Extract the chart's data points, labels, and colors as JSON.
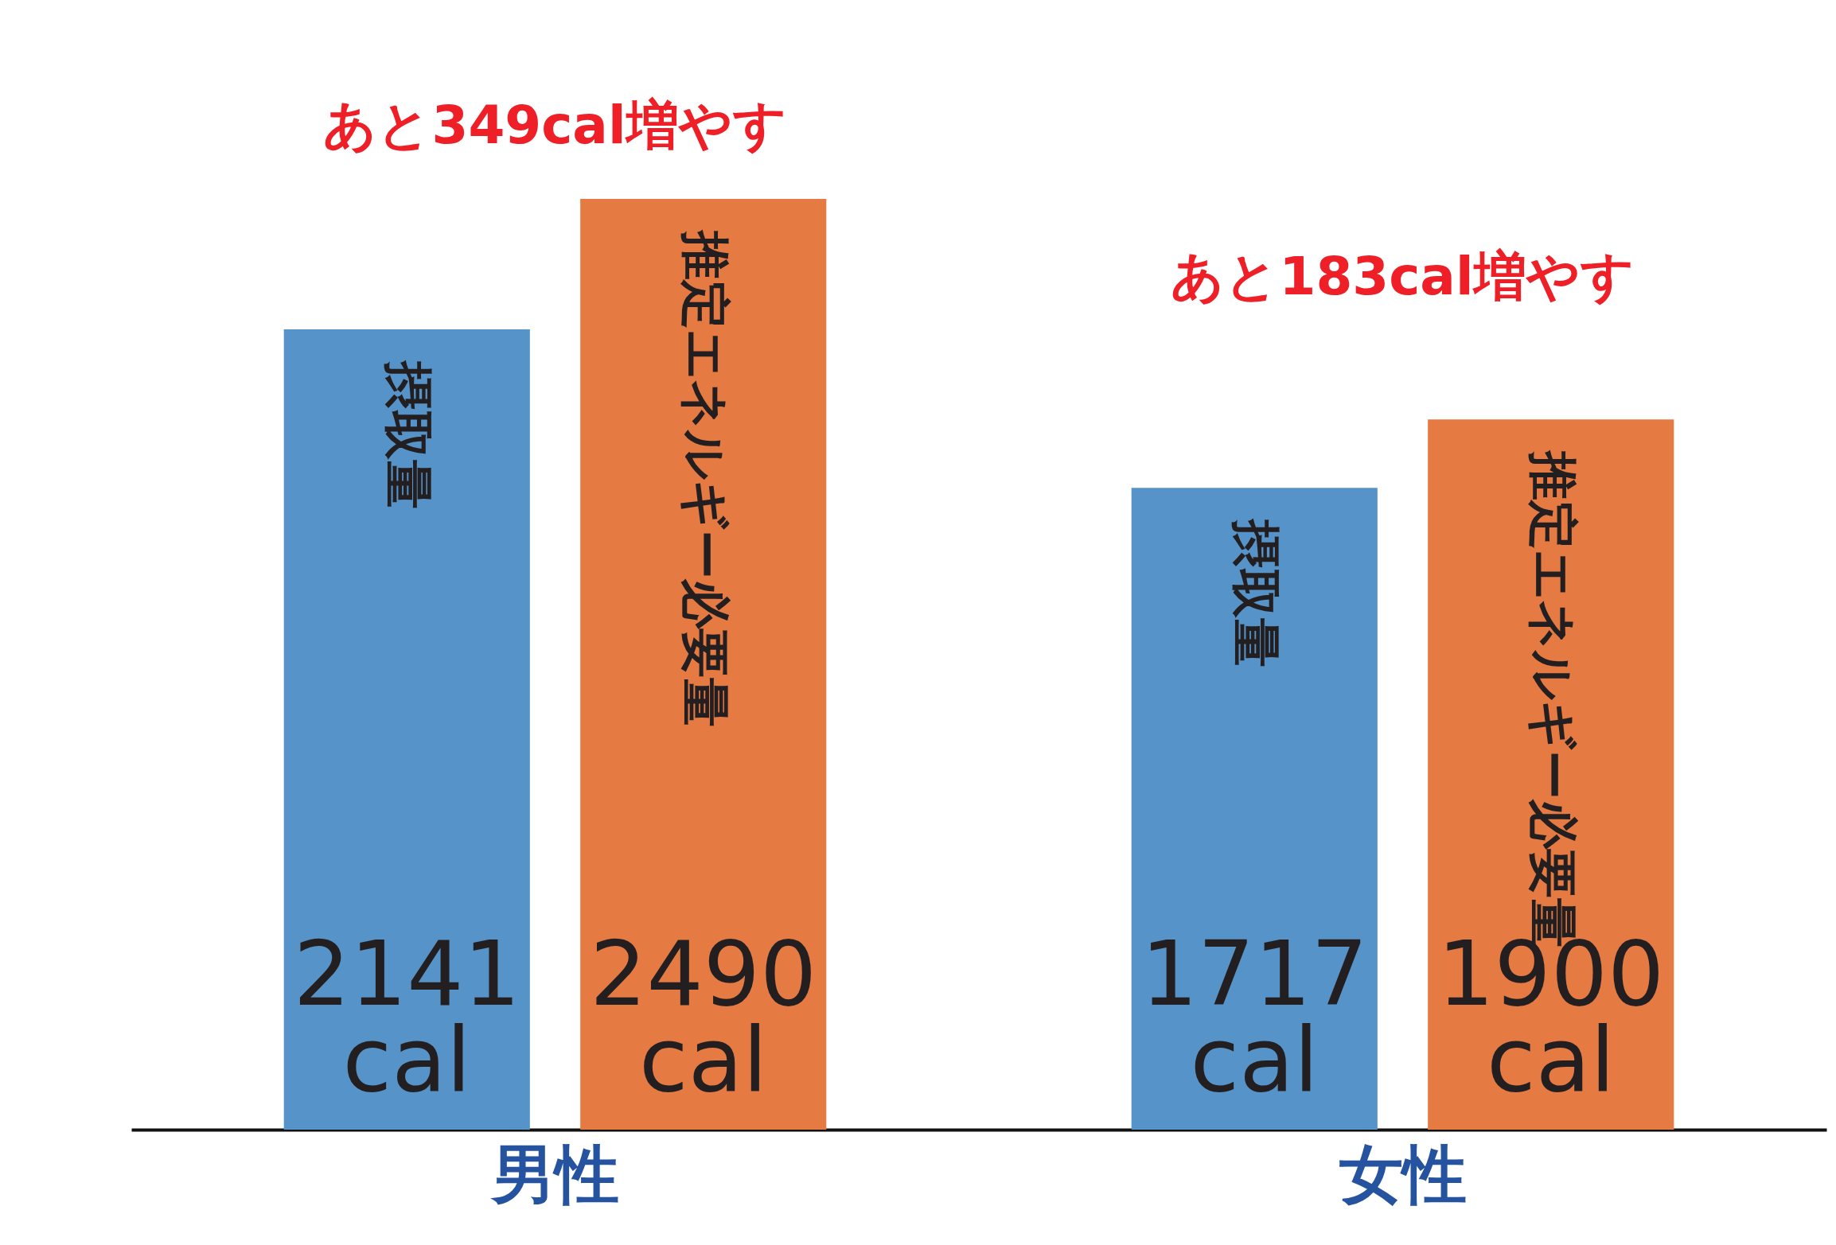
{
  "chart_data": {
    "type": "bar",
    "categories": [
      "男性",
      "女性"
    ],
    "series": [
      {
        "name": "摂取量",
        "color": "#5593c8",
        "values": [
          2141,
          1717
        ],
        "value_labels": [
          "2141 cal",
          "1717 cal"
        ]
      },
      {
        "name": "推定エネルギー必要量",
        "color": "#e57a43",
        "values": [
          2490,
          1900
        ],
        "value_labels": [
          "2490 cal",
          "1900 cal"
        ]
      }
    ],
    "annotations": [
      "あと349cal増やす",
      "あと183cal増やす"
    ]
  }
}
